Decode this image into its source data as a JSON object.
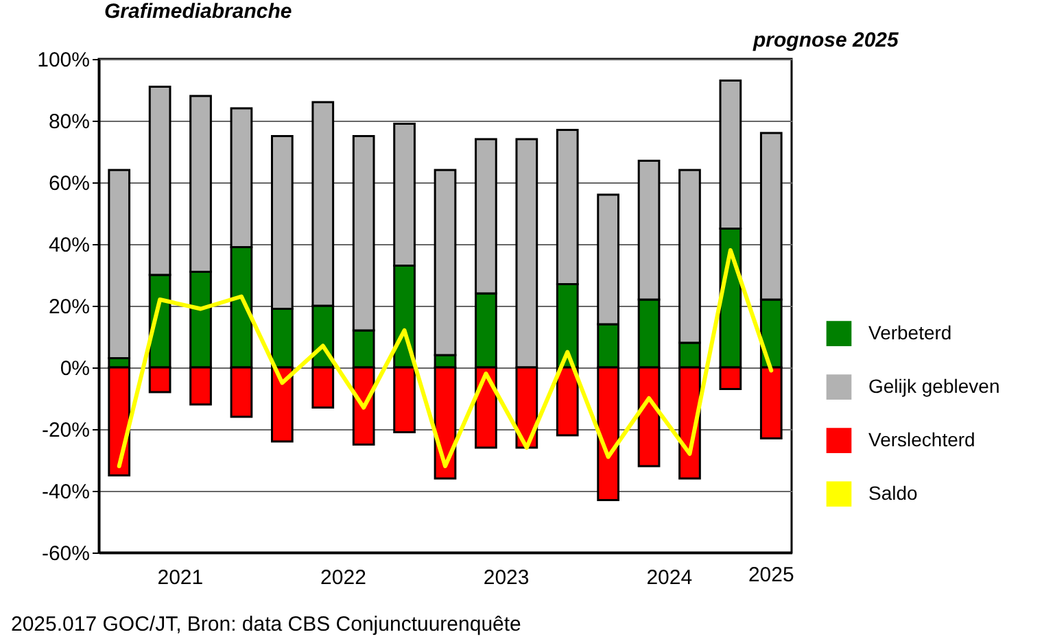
{
  "chart_data": {
    "type": "bar",
    "title": "Grafimediabranche",
    "annotations": [
      "prognose 2025",
      "2021",
      "2022",
      "2023",
      "2024",
      "2025",
      "2025.017 GOC/JT, Bron: data CBS Conjunctuurenquête"
    ],
    "categories": [
      null,
      null,
      null,
      null,
      null,
      null,
      null,
      null,
      null,
      null,
      null,
      null,
      null,
      null,
      null,
      null,
      null
    ],
    "stacked": true,
    "series": [
      {
        "name": "Verbeterd",
        "color": "#008000",
        "values": [
          3,
          30,
          31,
          39,
          19,
          20,
          12,
          33,
          4,
          24,
          0,
          27,
          14,
          22,
          8,
          45,
          22
        ]
      },
      {
        "name": "Gelijk gebleven",
        "color": "#b2b2b2",
        "values": [
          61,
          61,
          57,
          45,
          56,
          66,
          63,
          46,
          60,
          50,
          74,
          50,
          42,
          45,
          56,
          48,
          54
        ]
      },
      {
        "name": "Verslechterd",
        "color": "#ff0000",
        "values": [
          -35,
          -8,
          -12,
          -16,
          -24,
          -13,
          -25,
          -21,
          -36,
          -26,
          -26,
          -22,
          -43,
          -32,
          -36,
          -7,
          -23
        ]
      },
      {
        "name": "Saldo",
        "type": "line",
        "color": "#ffff00",
        "values": [
          -32,
          22,
          19,
          23,
          -5,
          7,
          -13,
          12,
          -32,
          -2,
          -26,
          5,
          -29,
          -10,
          -28,
          38,
          -1
        ]
      }
    ],
    "ylim": [
      -60,
      100
    ],
    "yticks": [
      {
        "value": -60,
        "label": "-60%"
      },
      {
        "value": -40,
        "label": "-40%"
      },
      {
        "value": -20,
        "label": "-20%"
      },
      {
        "value": 0,
        "label": "0%"
      },
      {
        "value": 20,
        "label": "20%"
      },
      {
        "value": 40,
        "label": "40%"
      },
      {
        "value": 60,
        "label": "60%"
      },
      {
        "value": 80,
        "label": "80%"
      },
      {
        "value": 100,
        "label": "100%"
      }
    ],
    "grid": "y",
    "legend": "right"
  }
}
